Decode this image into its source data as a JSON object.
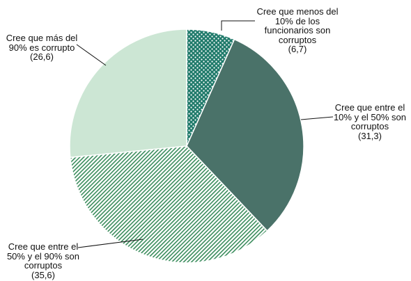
{
  "chart_data": {
    "type": "pie",
    "categories": [
      "Cree que menos del 10% de los funcionarios son corruptos",
      "Cree que entre el 10% y el 50% son corruptos",
      "Cree que entre el 50% y el 90% son corruptos",
      "Cree que más del 90% es corrupto"
    ],
    "values": [
      6.7,
      31.3,
      35.6,
      26.6
    ],
    "value_labels": [
      "(6,7)",
      "(31,3)",
      "(35,6)",
      "(26,6)"
    ],
    "colors": [
      "#1f7a6a",
      "#4a7269",
      "#3a8c5c",
      "#cce6d4"
    ],
    "fills": [
      "dots",
      "solid",
      "stripes",
      "solid"
    ]
  }
}
